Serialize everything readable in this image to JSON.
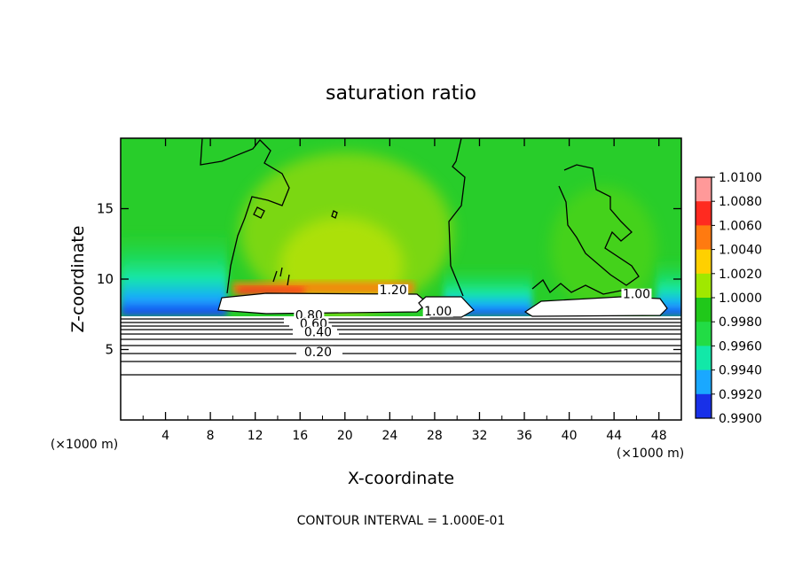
{
  "chart_data": {
    "type": "heatmap",
    "title": "saturation ratio",
    "xlabel": "X-coordinate",
    "ylabel": "Z-coordinate",
    "x_unit": "(×1000 m)",
    "x_unit_right": "(×1000 m)",
    "footer": "CONTOUR INTERVAL = 1.000E-01",
    "xlim": [
      0,
      50
    ],
    "ylim": [
      0,
      20
    ],
    "x_ticks": [
      "4",
      "8",
      "12",
      "16",
      "20",
      "24",
      "28",
      "32",
      "36",
      "40",
      "44",
      "48"
    ],
    "y_ticks": [
      "5",
      "10",
      "15"
    ],
    "colorbar": {
      "range": [
        0.99,
        1.01
      ],
      "labels": [
        "1.0100",
        "1.0080",
        "1.0060",
        "1.0040",
        "1.0020",
        "1.0000",
        "0.9980",
        "0.9960",
        "0.9940",
        "0.9920",
        "0.9900"
      ],
      "colors": [
        "#ff9999",
        "#ff2a20",
        "#ff7a10",
        "#ffd000",
        "#a0e800",
        "#20c81a",
        "#22dc45",
        "#12e8a8",
        "#1aa8ff",
        "#1830e8",
        "#6a08b0"
      ]
    },
    "contour_labels": [
      {
        "text": "1.20",
        "x": 24.3,
        "z": 9.0
      },
      {
        "text": "1.00",
        "x": 28.3,
        "z": 7.5
      },
      {
        "text": "1.00",
        "x": 46.0,
        "z": 8.7
      },
      {
        "text": "0.80",
        "x": 16.8,
        "z": 7.2
      },
      {
        "text": "0.60",
        "x": 17.2,
        "z": 6.6
      },
      {
        "text": "0.40",
        "x": 17.6,
        "z": 6.0
      },
      {
        "text": "0.20",
        "x": 17.6,
        "z": 4.6
      }
    ],
    "background_field": 1.0,
    "grid": false
  }
}
